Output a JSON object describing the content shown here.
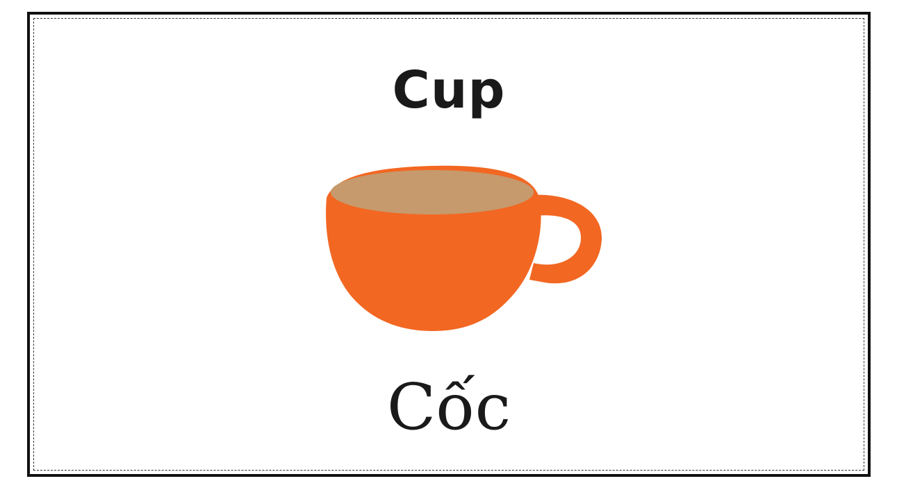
{
  "card": {
    "english_word": "Cup",
    "vietnamese_word": "Cốc",
    "picture_icon": "cup-icon"
  },
  "colors": {
    "cup_body": "#f26722",
    "cup_drink": "#c69a6d",
    "border": "#111111",
    "text": "#1a1a1a"
  }
}
